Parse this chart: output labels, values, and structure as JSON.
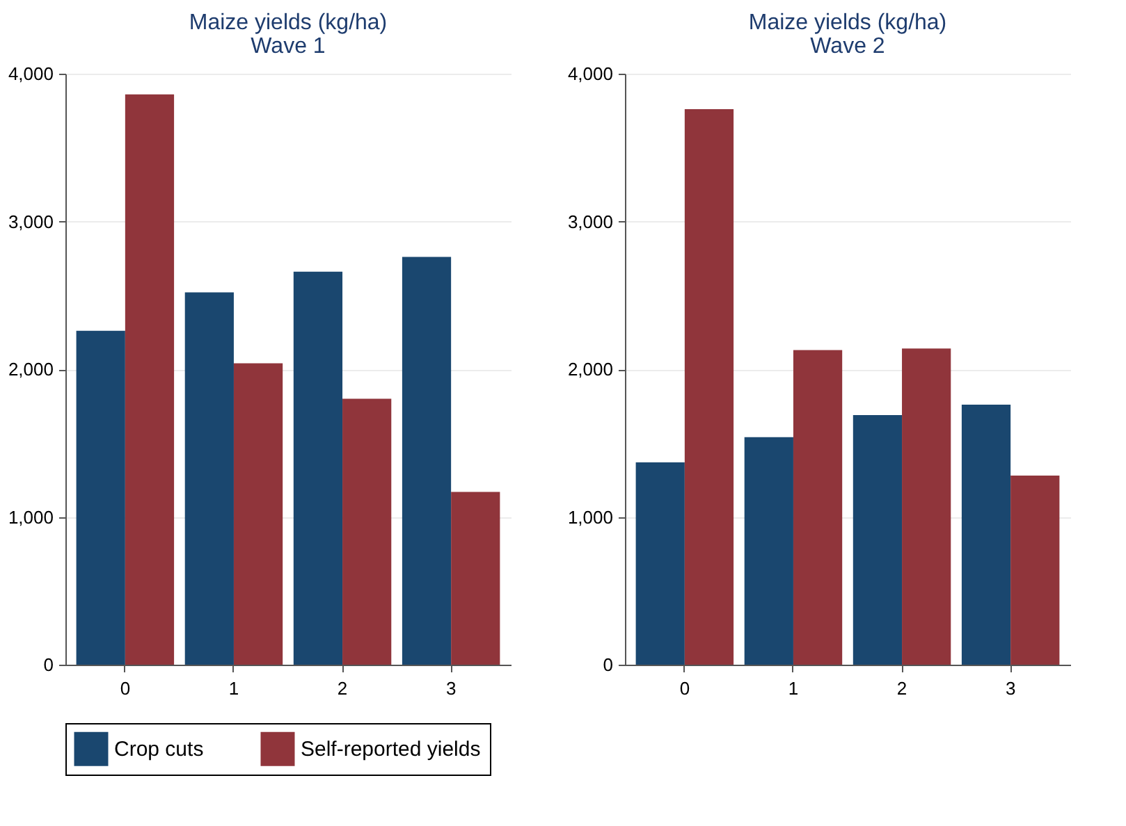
{
  "chart_data": [
    {
      "type": "bar",
      "title": "Maize yields (kg/ha)",
      "subtitle": "Wave 1",
      "categories": [
        "0",
        "1",
        "2",
        "3"
      ],
      "series": [
        {
          "name": "Crop cuts",
          "color": "#1a476f",
          "values": [
            2260,
            2520,
            2660,
            2760
          ]
        },
        {
          "name": "Self-reported yields",
          "color": "#90353b",
          "values": [
            3860,
            2040,
            1800,
            1170
          ]
        }
      ],
      "ylim": [
        0,
        4000
      ],
      "yticks": [
        0,
        {
          "value": 1000,
          "label": "1,000"
        },
        {
          "value": 2000,
          "label": "2,000"
        },
        {
          "value": 3000,
          "label": "3,000"
        },
        {
          "value": 4000,
          "label": "4,000"
        }
      ],
      "grid": "y",
      "legend": "bottom"
    },
    {
      "type": "bar",
      "title": "Maize yields (kg/ha)",
      "subtitle": "Wave 2",
      "categories": [
        "0",
        "1",
        "2",
        "3"
      ],
      "series": [
        {
          "name": "Crop cuts",
          "color": "#1a476f",
          "values": [
            1370,
            1540,
            1690,
            1760
          ]
        },
        {
          "name": "Self-reported yields",
          "color": "#90353b",
          "values": [
            3760,
            2130,
            2140,
            1280
          ]
        }
      ],
      "ylim": [
        0,
        4000
      ],
      "yticks": [
        0,
        {
          "value": 1000,
          "label": "1,000"
        },
        {
          "value": 2000,
          "label": "2,000"
        },
        {
          "value": 3000,
          "label": "3,000"
        },
        {
          "value": 4000,
          "label": "4,000"
        }
      ],
      "grid": "y",
      "legend": "bottom"
    }
  ]
}
